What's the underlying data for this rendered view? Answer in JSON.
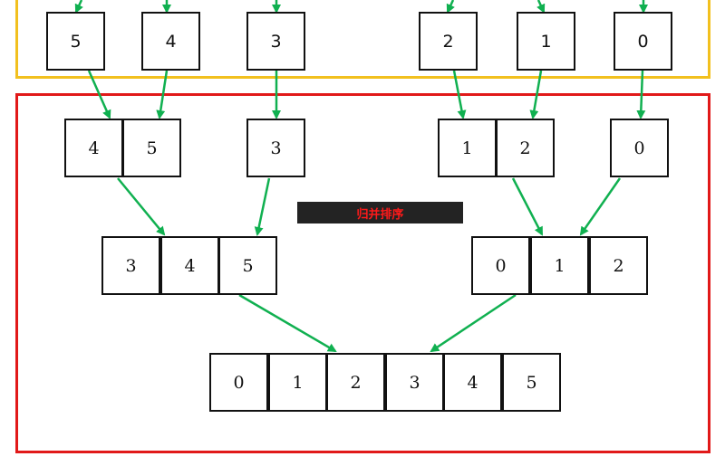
{
  "title": "归并排序",
  "colors": {
    "arrow": "#10b050",
    "split_frame": "#f2c01e",
    "merge_frame": "#e11919",
    "title_bg": "#232323",
    "title_text": "#ff1a1a"
  },
  "split_row": [
    "5",
    "4",
    "3",
    "2",
    "1",
    "0"
  ],
  "merge_level_1": {
    "groups": [
      [
        "4",
        "5"
      ],
      [
        "3"
      ],
      [
        "1",
        "2"
      ],
      [
        "0"
      ]
    ]
  },
  "merge_level_2": {
    "groups": [
      [
        "3",
        "4",
        "5"
      ],
      [
        "0",
        "1",
        "2"
      ]
    ]
  },
  "merge_level_3": {
    "groups": [
      [
        "0",
        "1",
        "2",
        "3",
        "4",
        "5"
      ]
    ]
  }
}
